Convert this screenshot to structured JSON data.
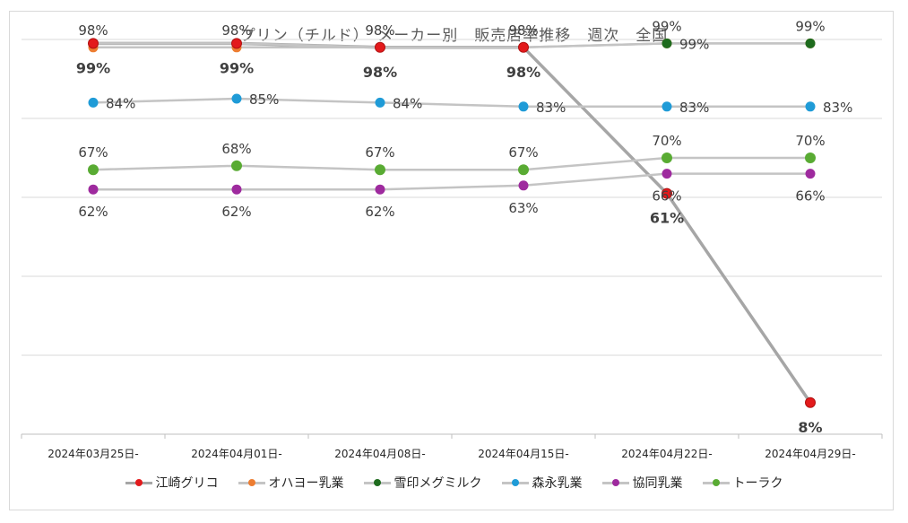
{
  "chart_data": {
    "type": "line",
    "title": "プリン（チルド）　メーカー別　販売店率推移　週次　全国",
    "categories": [
      "2024年03月25日-",
      "2024年04月01日-",
      "2024年04月08日-",
      "2024年04月15日-",
      "2024年04月22日-",
      "2024年04月29日-"
    ],
    "ylim": [
      0,
      100
    ],
    "grid": true,
    "legend_position": "bottom",
    "series": [
      {
        "name": "江崎グリコ",
        "line_color": "#a6a6a6",
        "marker_color": "#e31a1c",
        "values": [
          99,
          99,
          98,
          98,
          61,
          8
        ],
        "labels": [
          "99%",
          "99%",
          "98%",
          "98%",
          "61%",
          "8%"
        ],
        "label_pos": "below",
        "bold": true
      },
      {
        "name": "オハヨー乳業",
        "line_color": "#c4c4c4",
        "marker_color": "#ed7d31",
        "values": [
          98,
          98,
          98,
          98,
          99,
          99
        ],
        "labels": [
          "98%",
          "98%",
          "98%",
          "98%",
          "99%",
          "99%"
        ],
        "label_pos": "above",
        "bold": false
      },
      {
        "name": "雪印メグミルク",
        "line_color": "#c4c4c4",
        "marker_color": "#1e6b1e",
        "values": [
          99,
          99,
          98,
          98,
          99,
          99
        ],
        "labels": [
          "",
          "",
          "",
          "",
          "99%",
          ""
        ],
        "label_pos": "right",
        "bold": false
      },
      {
        "name": "森永乳業",
        "line_color": "#c4c4c4",
        "marker_color": "#1f9bd7",
        "values": [
          84,
          85,
          84,
          83,
          83,
          83
        ],
        "labels": [
          "84%",
          "85%",
          "84%",
          "83%",
          "83%",
          "83%"
        ],
        "label_pos": "right",
        "bold": false
      },
      {
        "name": "協同乳業",
        "line_color": "#c4c4c4",
        "marker_color": "#9e2a9e",
        "values": [
          62,
          62,
          62,
          63,
          66,
          66
        ],
        "labels": [
          "62%",
          "62%",
          "62%",
          "63%",
          "66%",
          "66%"
        ],
        "label_pos": "below",
        "bold": false
      },
      {
        "name": "トーラク",
        "line_color": "#c4c4c4",
        "marker_color": "#59ab33",
        "values": [
          67,
          68,
          67,
          67,
          70,
          70
        ],
        "labels": [
          "67%",
          "68%",
          "67%",
          "67%",
          "70%",
          "70%"
        ],
        "label_pos": "above",
        "bold": false
      }
    ]
  }
}
